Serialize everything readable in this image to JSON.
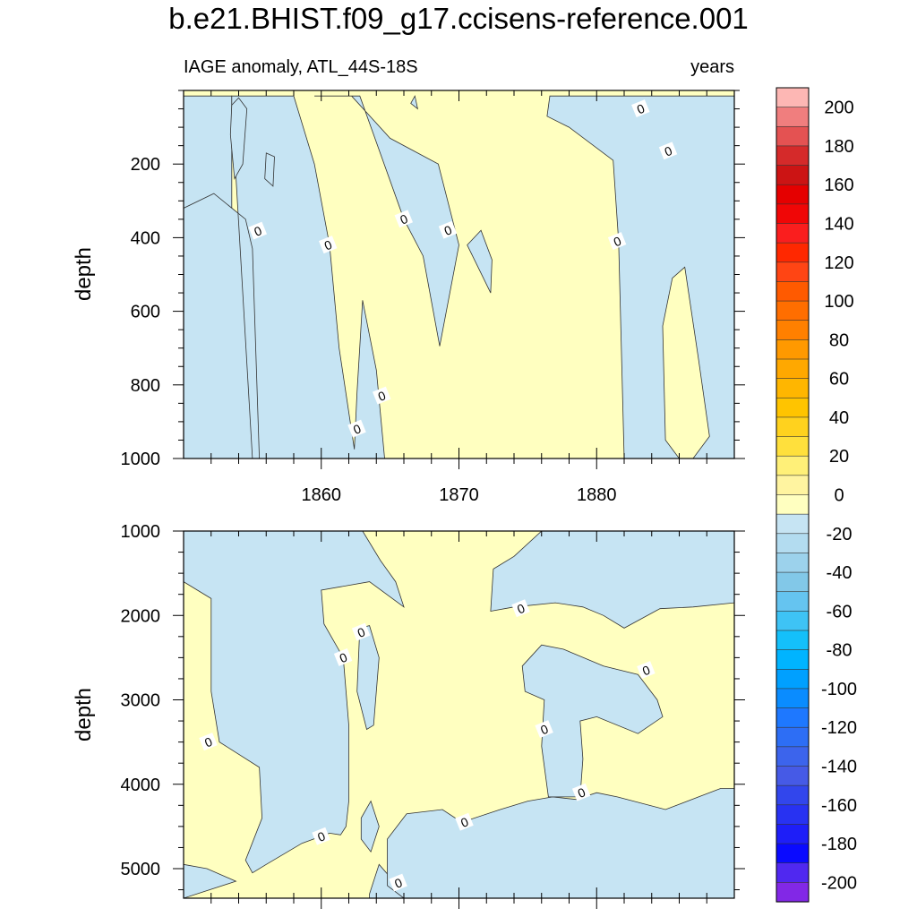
{
  "title": "b.e21.BHIST.f09_g17.ccisens-reference.001",
  "chart_data": {
    "type": "contour",
    "variable_label": "IAGE anomaly, ATL_44S-18S",
    "units": "years",
    "xlabel": "",
    "xlim": [
      1850,
      1890
    ],
    "x_ticks": [
      1860,
      1870,
      1880
    ],
    "contour_line_label": "0",
    "colors": {
      "positive": "#ffffc0",
      "negative": "#c6e4f3",
      "contour_line": "#333333"
    },
    "panels": [
      {
        "name": "upper",
        "ylabel": "depth",
        "ylim": [
          0,
          1000
        ],
        "y_inverted": true,
        "y_ticks": [
          200,
          400,
          600,
          800,
          1000
        ],
        "background": "positive",
        "negative_regions": [
          [
            [
              1850,
              410
            ],
            [
              1850,
              15
            ],
            [
              1853.5,
              15
            ],
            [
              1853.5,
              320
            ],
            [
              1850,
              410
            ]
          ],
          [
            [
              1853.5,
              40
            ],
            [
              1853.5,
              15
            ],
            [
              1858,
              15
            ],
            [
              1859.5,
              200
            ],
            [
              1860.6,
              420
            ],
            [
              1861.3,
              700
            ],
            [
              1862.4,
              975
            ],
            [
              1862.6,
              820
            ],
            [
              1863,
              570
            ],
            [
              1864,
              760
            ],
            [
              1864.6,
              1000
            ],
            [
              1850,
              1000
            ],
            [
              1850,
              320
            ],
            [
              1852.2,
              280
            ],
            [
              1854.5,
              350
            ],
            [
              1855,
              430
            ],
            [
              1855.5,
              1000
            ],
            [
              1855,
              1000
            ]
          ],
          [
            [
              1853.5,
              40
            ],
            [
              1854,
              20
            ],
            [
              1854.6,
              50
            ],
            [
              1854.3,
              200
            ],
            [
              1853.7,
              240
            ],
            [
              1853.4,
              120
            ]
          ],
          [
            [
              1856,
              170
            ],
            [
              1856.6,
              180
            ],
            [
              1856.5,
              260
            ],
            [
              1855.9,
              240
            ]
          ],
          [
            [
              1859.5,
              15
            ],
            [
              1862.8,
              15
            ],
            [
              1866,
              350
            ],
            [
              1867.4,
              450
            ],
            [
              1868.6,
              695
            ],
            [
              1870,
              420
            ],
            [
              1868.5,
              200
            ],
            [
              1865,
              130
            ],
            [
              1862.2,
              15
            ]
          ],
          [
            [
              1866.5,
              35
            ],
            [
              1866.8,
              15
            ],
            [
              1867,
              50
            ]
          ],
          [
            [
              1870.6,
              420
            ],
            [
              1871.6,
              380
            ],
            [
              1872.4,
              460
            ],
            [
              1872.3,
              550
            ],
            [
              1870.6,
              420
            ]
          ],
          [
            [
              1876.6,
              15
            ],
            [
              1890,
              15
            ],
            [
              1890,
              1000
            ],
            [
              1887,
              1000
            ],
            [
              1888.2,
              940
            ],
            [
              1887.4,
              730
            ],
            [
              1886.4,
              480
            ],
            [
              1885.5,
              510
            ],
            [
              1884.8,
              640
            ],
            [
              1885,
              950
            ],
            [
              1886,
              1000
            ],
            [
              1882,
              1000
            ],
            [
              1881.6,
              410
            ],
            [
              1881.2,
              190
            ],
            [
              1878,
              100
            ],
            [
              1876.4,
              70
            ]
          ]
        ],
        "contour_labels": [
          [
            1855.4,
            382
          ],
          [
            1860.5,
            420
          ],
          [
            1866,
            350
          ],
          [
            1869.2,
            380
          ],
          [
            1881.5,
            410
          ],
          [
            1862.6,
            920
          ],
          [
            1864.4,
            830
          ],
          [
            1883.2,
            50
          ],
          [
            1885.2,
            165
          ]
        ]
      },
      {
        "name": "lower",
        "ylabel": "depth",
        "ylim": [
          1000,
          5350
        ],
        "y_inverted": true,
        "y_ticks": [
          1000,
          2000,
          3000,
          4000,
          5000
        ],
        "background": "positive",
        "negative_regions": [
          [
            [
              1850,
              1000
            ],
            [
              1863,
              1000
            ],
            [
              1864.3,
              1350
            ],
            [
              1865.4,
              1600
            ],
            [
              1866,
              1900
            ],
            [
              1863.5,
              1600
            ],
            [
              1860,
              1700
            ],
            [
              1860.2,
              2100
            ],
            [
              1861.6,
              2500
            ],
            [
              1862,
              3300
            ],
            [
              1862,
              4200
            ],
            [
              1861.8,
              4500
            ],
            [
              1861.4,
              4600
            ],
            [
              1860.6,
              4580
            ],
            [
              1858.6,
              4700
            ],
            [
              1856,
              4950
            ],
            [
              1855,
              5050
            ],
            [
              1854.5,
              4900
            ],
            [
              1855.7,
              4400
            ],
            [
              1855.5,
              3800
            ],
            [
              1852.6,
              3500
            ],
            [
              1852,
              2900
            ],
            [
              1852,
              1800
            ],
            [
              1850,
              1600
            ]
          ],
          [
            [
              1850,
              4950
            ],
            [
              1851.7,
              5000
            ],
            [
              1853.8,
              5150
            ],
            [
              1850,
              5350
            ]
          ],
          [
            [
              1862.8,
              2150
            ],
            [
              1863.5,
              2120
            ],
            [
              1864.2,
              2500
            ],
            [
              1863.8,
              3300
            ],
            [
              1863.3,
              3350
            ],
            [
              1862.6,
              2900
            ]
          ],
          [
            [
              1862.9,
              4400
            ],
            [
              1863.6,
              4200
            ],
            [
              1864.2,
              4500
            ],
            [
              1863.6,
              4800
            ],
            [
              1862.9,
              4650
            ]
          ],
          [
            [
              1863.5,
              5300
            ],
            [
              1864.2,
              4950
            ],
            [
              1865,
              5100
            ],
            [
              1867,
              5050
            ],
            [
              1869.8,
              5200
            ],
            [
              1872,
              5300
            ],
            [
              1873,
              5350
            ],
            [
              1876,
              5350
            ],
            [
              1870.6,
              5340
            ],
            [
              1866.5,
              5350
            ],
            [
              1863.5,
              5350
            ]
          ],
          [
            [
              1864.8,
              4650
            ],
            [
              1866.2,
              4350
            ],
            [
              1868.8,
              4300
            ],
            [
              1870.2,
              4450
            ],
            [
              1873,
              4300
            ],
            [
              1875,
              4200
            ],
            [
              1876.8,
              4150
            ],
            [
              1878.5,
              4180
            ],
            [
              1880,
              4100
            ],
            [
              1881.5,
              4150
            ],
            [
              1885,
              4300
            ],
            [
              1889,
              4050
            ],
            [
              1890,
              4050
            ],
            [
              1890,
              5350
            ],
            [
              1866,
              5350
            ],
            [
              1864.8,
              5200
            ]
          ],
          [
            [
              1872.3,
              1950
            ],
            [
              1874,
              1900
            ],
            [
              1877,
              1850
            ],
            [
              1879,
              1900
            ],
            [
              1880.5,
              2000
            ],
            [
              1882,
              2150
            ],
            [
              1884.6,
              1920
            ],
            [
              1887,
              1900
            ],
            [
              1890,
              1850
            ],
            [
              1890,
              1000
            ],
            [
              1876,
              1000
            ],
            [
              1874,
              1300
            ],
            [
              1872.5,
              1450
            ]
          ],
          [
            [
              1874.6,
              2600
            ],
            [
              1876,
              2350
            ],
            [
              1877.6,
              2400
            ],
            [
              1880.5,
              2600
            ],
            [
              1883,
              2700
            ],
            [
              1884.4,
              3000
            ],
            [
              1884.8,
              3200
            ],
            [
              1883,
              3400
            ],
            [
              1880,
              3200
            ],
            [
              1878.8,
              3250
            ],
            [
              1879,
              3700
            ],
            [
              1878.8,
              4150
            ],
            [
              1876.5,
              4150
            ],
            [
              1876,
              3550
            ],
            [
              1876.2,
              3000
            ],
            [
              1874.8,
              2900
            ]
          ]
        ],
        "contour_labels": [
          [
            1874.5,
            1920
          ],
          [
            1862.9,
            2200
          ],
          [
            1861.6,
            2500
          ],
          [
            1851.8,
            3500
          ],
          [
            1876.2,
            3350
          ],
          [
            1883.6,
            2650
          ],
          [
            1878.9,
            4100
          ],
          [
            1860,
            4620
          ],
          [
            1870.4,
            4450
          ],
          [
            1865.6,
            5170
          ]
        ]
      }
    ],
    "colorbar": {
      "labels": [
        "200",
        "180",
        "160",
        "140",
        "120",
        "100",
        "80",
        "60",
        "40",
        "20",
        "0",
        "-20",
        "-40",
        "-60",
        "-80",
        "-100",
        "-120",
        "-140",
        "-160",
        "-180",
        "-200"
      ],
      "colors": [
        "#fdb7b4",
        "#f07e7e",
        "#e45252",
        "#d52a2a",
        "#cc1414",
        "#e50000",
        "#f00606",
        "#fa1e1e",
        "#ff2800",
        "#ff4514",
        "#ff5a00",
        "#ff6e00",
        "#ff8000",
        "#ff9900",
        "#ffa800",
        "#ffb600",
        "#ffc400",
        "#ffd21e",
        "#ffe03c",
        "#fff078",
        "#fff4a0",
        "#ffffc0",
        "#c6e4f3",
        "#b3dcf0",
        "#9cd2ec",
        "#82c8e8",
        "#65c4f0",
        "#3ec3f5",
        "#14c0fa",
        "#00b4ff",
        "#00a0ff",
        "#0a8cff",
        "#1e78ff",
        "#2d6ef5",
        "#3c64ec",
        "#465ae6",
        "#3246ec",
        "#2832f2",
        "#1e1ef8",
        "#0a0aff",
        "#5028f0",
        "#8228e6"
      ]
    }
  }
}
